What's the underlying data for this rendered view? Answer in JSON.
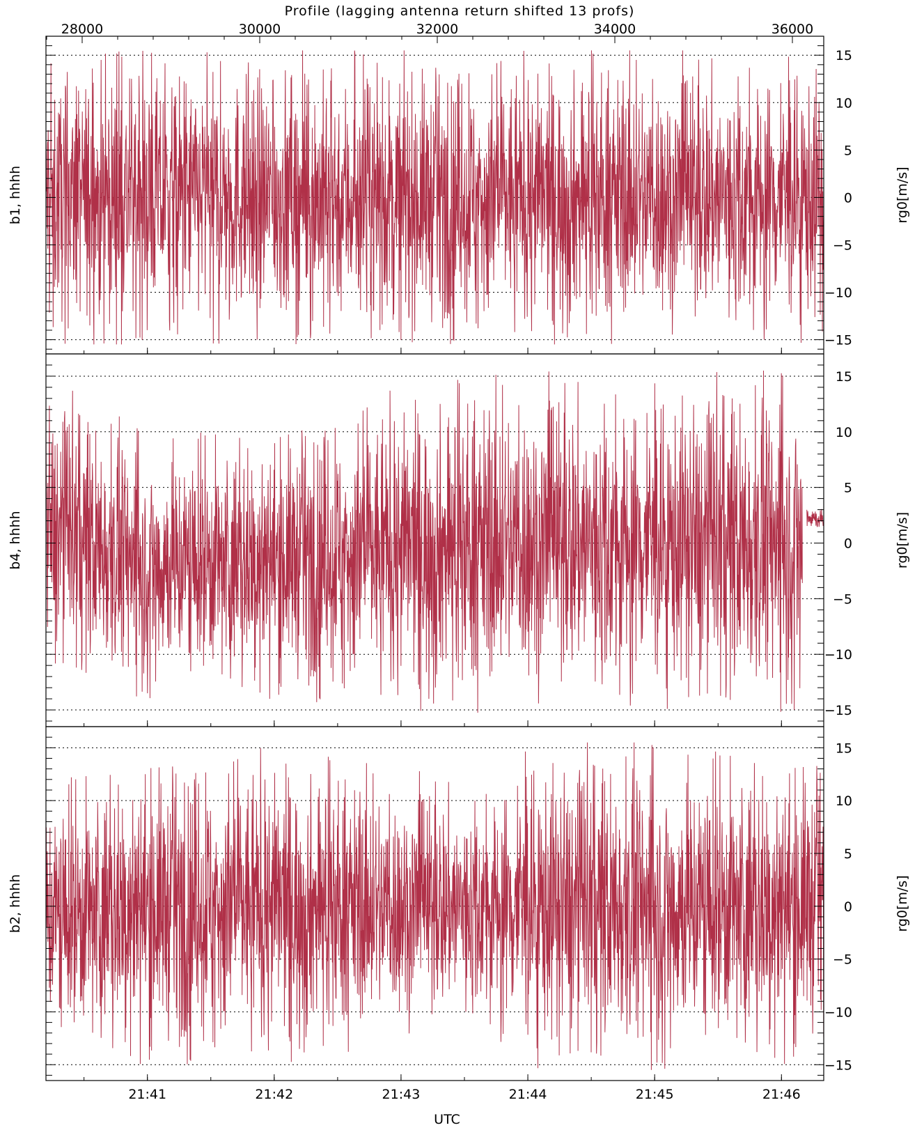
{
  "top_axis_label": "Profile (lagging antenna return shifted 13 profs)",
  "bottom_axis_label": "UTC",
  "trace_color": "#b03048",
  "chart_data": [
    {
      "type": "line",
      "panel": "b1",
      "ylabel_left": "b1, hhhh",
      "ylabel_right": "rg0[m/s]",
      "ylim": [
        -16.5,
        17
      ],
      "yticks": [
        -15,
        -10,
        -5,
        0,
        5,
        10,
        15
      ],
      "ytick_labels": [
        "−15",
        "−10",
        "−5",
        "0",
        "5",
        "10",
        "15"
      ],
      "grid": "dotted horizontal",
      "profile_ticks": [
        28000,
        30000,
        32000,
        34000,
        36000
      ],
      "profile_tick_labels": [
        "28000",
        "30000",
        "32000",
        "34000",
        "36000"
      ],
      "xlim_utc": [
        "21:40:12",
        "21:46:20"
      ],
      "envelope_segments": [
        {
          "x": [
            "21:40:12",
            "21:41:20",
            "21:42:40",
            "21:44:00",
            "21:45:20",
            "21:46:20"
          ],
          "y_max": [
            15.5,
            15.5,
            15.5,
            15.5,
            15.5,
            15.5
          ],
          "y_min": [
            -15.5,
            -15.5,
            -15.5,
            -15.5,
            -15.5,
            -15.5
          ]
        }
      ]
    },
    {
      "type": "line",
      "panel": "b4",
      "ylabel_left": "b4, hhhh",
      "ylabel_right": "rg0[m/s]",
      "ylim": [
        -16.5,
        17
      ],
      "yticks": [
        -15,
        -10,
        -5,
        0,
        5,
        10,
        15
      ],
      "ytick_labels": [
        "−15",
        "−10",
        "−5",
        "0",
        "5",
        "10",
        "15"
      ],
      "grid": "dotted horizontal",
      "envelope_segments": [
        {
          "x": [
            "21:40:12",
            "21:41:00",
            "21:42:00",
            "21:43:00",
            "21:44:00",
            "21:45:00",
            "21:45:40",
            "21:46:10"
          ],
          "y_max": [
            15,
            10,
            11,
            14,
            15.5,
            15,
            15.5,
            15.5
          ],
          "y_min": [
            -12,
            -14,
            -14,
            -15,
            -15.5,
            -15,
            -15.5,
            -15
          ]
        },
        {
          "x": [
            "21:46:12",
            "21:46:20"
          ],
          "y_max": [
            4,
            3
          ],
          "y_min": [
            1,
            1
          ]
        }
      ]
    },
    {
      "type": "line",
      "panel": "b2",
      "ylabel_left": "b2, hhhh",
      "ylabel_right": "rg0[m/s]",
      "ylim": [
        -16.5,
        17
      ],
      "yticks": [
        -15,
        -10,
        -5,
        0,
        5,
        10,
        15
      ],
      "ytick_labels": [
        "−15",
        "−10",
        "−5",
        "0",
        "5",
        "10",
        "15"
      ],
      "grid": "dotted horizontal",
      "xticks_utc": [
        "21:41",
        "21:42",
        "21:43",
        "21:44",
        "21:45",
        "21:46"
      ],
      "envelope_segments": [
        {
          "x": [
            "21:40:12",
            "21:41:00",
            "21:42:00",
            "21:43:00",
            "21:43:40",
            "21:44:00",
            "21:45:00",
            "21:46:00",
            "21:46:20"
          ],
          "y_max": [
            12,
            15,
            15,
            13,
            12,
            15.5,
            15.5,
            15,
            15
          ],
          "y_min": [
            -14,
            -15,
            -15,
            -13,
            -12,
            -15.5,
            -15.5,
            -15,
            -14
          ]
        }
      ]
    }
  ]
}
